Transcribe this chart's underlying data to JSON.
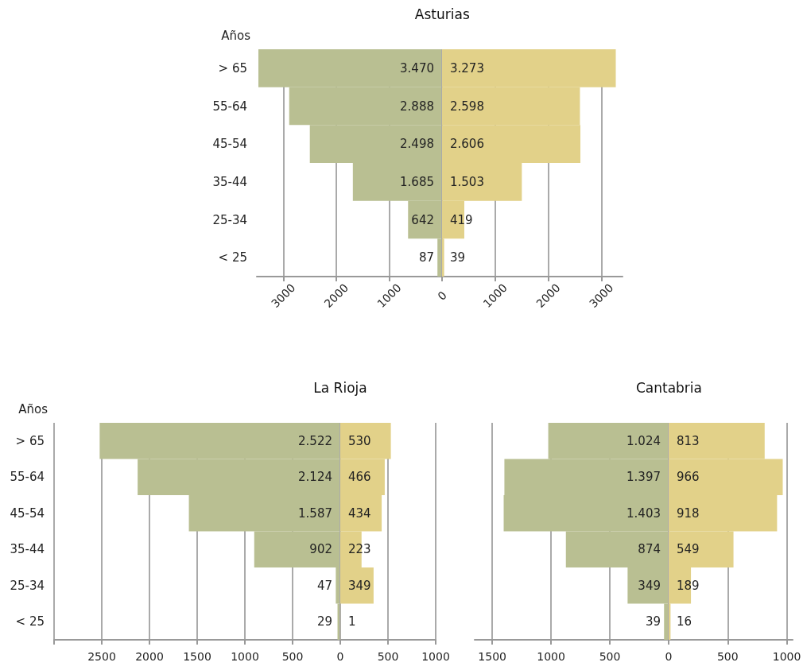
{
  "chart_data": [
    {
      "type": "bar",
      "orientation": "horizontal",
      "title": "Asturias",
      "ylabel": "Años",
      "categories": [
        "> 65",
        "55-64",
        "45-54",
        "35-44",
        "25-34",
        "< 25"
      ],
      "series": [
        {
          "color": "#b9bf92",
          "values": [
            3470,
            2888,
            2498,
            1685,
            642,
            87
          ],
          "value_labels": [
            "3.470",
            "2.888",
            "2.498",
            "1.685",
            "642",
            "87"
          ]
        }
      ],
      "xlim": [
        3500,
        0
      ],
      "xticks": [
        3000,
        2000,
        1000
      ],
      "grid": "x"
    },
    {
      "type": "bar",
      "orientation": "horizontal",
      "categories": [
        null,
        null,
        null,
        null,
        null,
        null
      ],
      "series": [
        {
          "color": "#e2d189",
          "values": [
            3273,
            2598,
            2606,
            1503,
            419,
            39
          ],
          "value_labels": [
            "3.273",
            "2.598",
            "2.606",
            "1.503",
            "419",
            "39"
          ]
        }
      ],
      "xlim": [
        0,
        3400
      ],
      "xticks": [
        0,
        1000,
        2000,
        3000
      ],
      "grid": "x"
    },
    {
      "type": "bar",
      "orientation": "horizontal",
      "title": "La Rioja",
      "ylabel": "Años",
      "categories": [
        "> 65",
        "55-64",
        "45-54",
        "35-44",
        "25-34",
        "< 25"
      ],
      "series": [
        {
          "color": "#b9bf92",
          "values": [
            2522,
            2124,
            1587,
            902,
            47,
            29
          ],
          "value_labels": [
            "2.522",
            "2.124",
            "1.587",
            "902",
            "47",
            "29"
          ]
        }
      ],
      "xlim": [
        3000,
        0
      ],
      "xticks": [
        {
          "value": 3000,
          "label": null
        },
        2500,
        2000,
        1500,
        1000,
        500
      ],
      "grid": "x"
    },
    {
      "type": "bar",
      "orientation": "horizontal",
      "categories": [
        null,
        null,
        null,
        null,
        null,
        null
      ],
      "series": [
        {
          "color": "#e2d189",
          "values": [
            530,
            466,
            434,
            223,
            349,
            1
          ],
          "value_labels": [
            "530",
            "466",
            "434",
            "223",
            "349",
            "1"
          ]
        }
      ],
      "xlim": [
        0,
        1000
      ],
      "xticks": [
        0,
        500,
        1000
      ],
      "grid": "x"
    },
    {
      "type": "bar",
      "orientation": "horizontal",
      "title": "Cantabria",
      "categories": [
        null,
        null,
        null,
        null,
        null,
        null
      ],
      "series": [
        {
          "color": "#b9bf92",
          "values": [
            1024,
            1397,
            1403,
            874,
            349,
            39
          ],
          "value_labels": [
            "1.024",
            "1.397",
            "1.403",
            "874",
            "349",
            "39"
          ]
        }
      ],
      "xlim": [
        1650,
        0
      ],
      "xticks": [
        1500,
        1000,
        500
      ],
      "grid": "x"
    },
    {
      "type": "bar",
      "orientation": "horizontal",
      "categories": [
        null,
        null,
        null,
        null,
        null,
        null
      ],
      "series": [
        {
          "color": "#e2d189",
          "values": [
            813,
            966,
            918,
            549,
            189,
            16
          ],
          "value_labels": [
            "813",
            "966",
            "918",
            "549",
            "189",
            "16"
          ]
        }
      ],
      "xlim": [
        0,
        1050
      ],
      "xticks": [
        0,
        500,
        1000
      ],
      "grid": "x"
    }
  ]
}
